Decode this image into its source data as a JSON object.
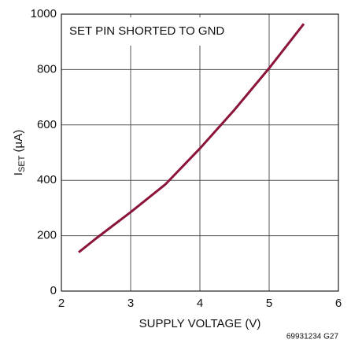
{
  "chart_data": {
    "type": "line",
    "annotation": "SET PIN SHORTED TO GND",
    "xlabel": "SUPPLY VOLTAGE (V)",
    "ylabel": {
      "main": "I",
      "sub": "SET",
      "unit": " (µA)"
    },
    "footnote": "69931234 G27",
    "x": [
      2.25,
      2.5,
      3,
      3.5,
      4,
      4.5,
      5,
      5.5
    ],
    "series": [
      {
        "color": "#8b1538",
        "values": [
          140,
          190,
          285,
          385,
          515,
          655,
          805,
          965
        ]
      }
    ],
    "xlim": [
      2,
      6
    ],
    "xticks": [
      2,
      3,
      4,
      5,
      6
    ],
    "ylim": [
      0,
      1000
    ],
    "yticks": [
      0,
      200,
      400,
      600,
      800,
      1000
    ],
    "grid": true
  }
}
